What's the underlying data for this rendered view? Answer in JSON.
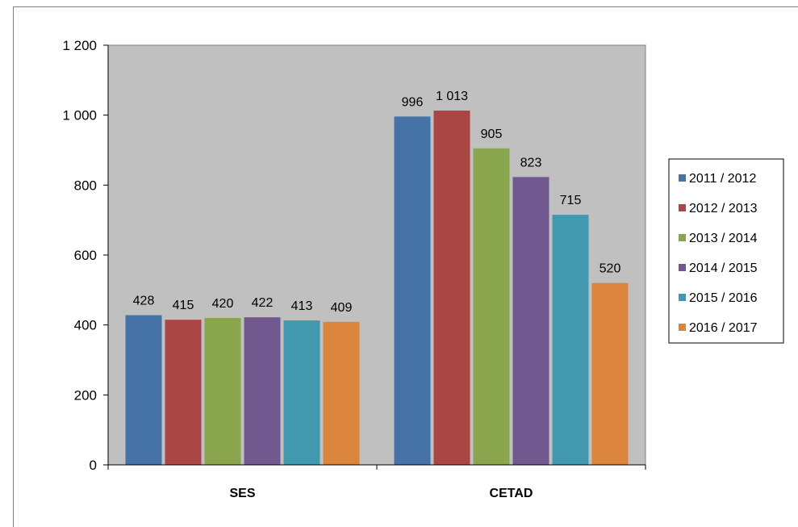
{
  "chart_data": {
    "type": "bar",
    "categories": [
      "SES",
      "CETAD"
    ],
    "series": [
      {
        "name": "2011 / 2012",
        "values": [
          428,
          996
        ],
        "value_labels": [
          "428",
          "996"
        ],
        "color": "#4572a7"
      },
      {
        "name": "2012 / 2013",
        "values": [
          415,
          1013
        ],
        "value_labels": [
          "415",
          "1 013"
        ],
        "color": "#aa4643"
      },
      {
        "name": "2013 / 2014",
        "values": [
          420,
          905
        ],
        "value_labels": [
          "420",
          "905"
        ],
        "color": "#89a54e"
      },
      {
        "name": "2014 / 2015",
        "values": [
          422,
          823
        ],
        "value_labels": [
          "422",
          "823"
        ],
        "color": "#71588f"
      },
      {
        "name": "2015 / 2016",
        "values": [
          413,
          715
        ],
        "value_labels": [
          "413",
          "715"
        ],
        "color": "#4198af"
      },
      {
        "name": "2016 / 2017",
        "values": [
          409,
          520
        ],
        "value_labels": [
          "409",
          "520"
        ],
        "color": "#db843d"
      }
    ],
    "yticks": [
      0,
      200,
      400,
      600,
      800,
      1000,
      1200
    ],
    "ytick_labels": [
      "0",
      "200",
      "400",
      "600",
      "800",
      "1 000",
      "1 200"
    ],
    "ylim": [
      0,
      1200
    ],
    "grid": false,
    "plot_background": "#c0c0c0",
    "legend_position": "right"
  }
}
